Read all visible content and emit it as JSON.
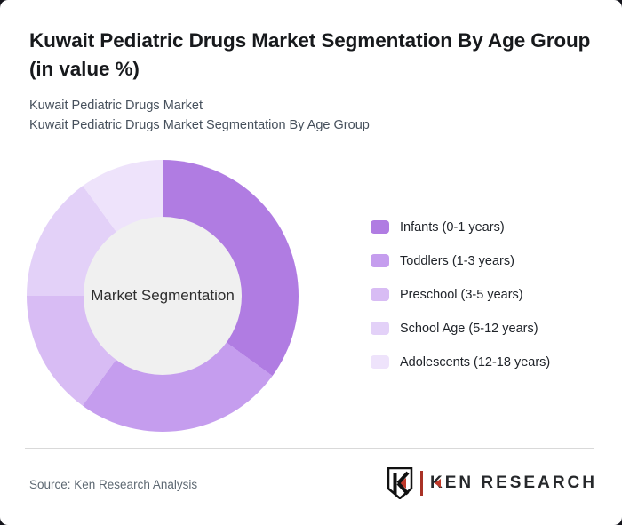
{
  "header": {
    "title": "Kuwait Pediatric Drugs Market Segmentation By Age Group (in value %)",
    "subtitle_line1": "Kuwait Pediatric Drugs Market",
    "subtitle_line2": "Kuwait Pediatric Drugs Market Segmentation By Age Group"
  },
  "chart_data": {
    "type": "pie",
    "style": "donut",
    "title": "Kuwait Pediatric Drugs Market Segmentation By Age Group (in value %)",
    "center_label": "Market Segmentation",
    "center_fill": "#f0f0f0",
    "categories": [
      "Infants (0-1 years)",
      "Toddlers (1-3 years)",
      "Preschool (3-5 years)",
      "School Age (5-12 years)",
      "Adolescents (12-18 years)"
    ],
    "values": [
      35,
      25,
      15,
      15,
      10
    ],
    "colors": [
      "#b07ce2",
      "#c59dee",
      "#d8bcf4",
      "#e3d1f8",
      "#eee3fb"
    ],
    "start_angle_deg": 0,
    "direction": "clockwise",
    "legend_position": "right"
  },
  "footer": {
    "source": "Source: Ken Research Analysis",
    "logo_mark": "K",
    "logo_text": "KEN RESEARCH",
    "logo_accent_color": "#c0392b"
  }
}
